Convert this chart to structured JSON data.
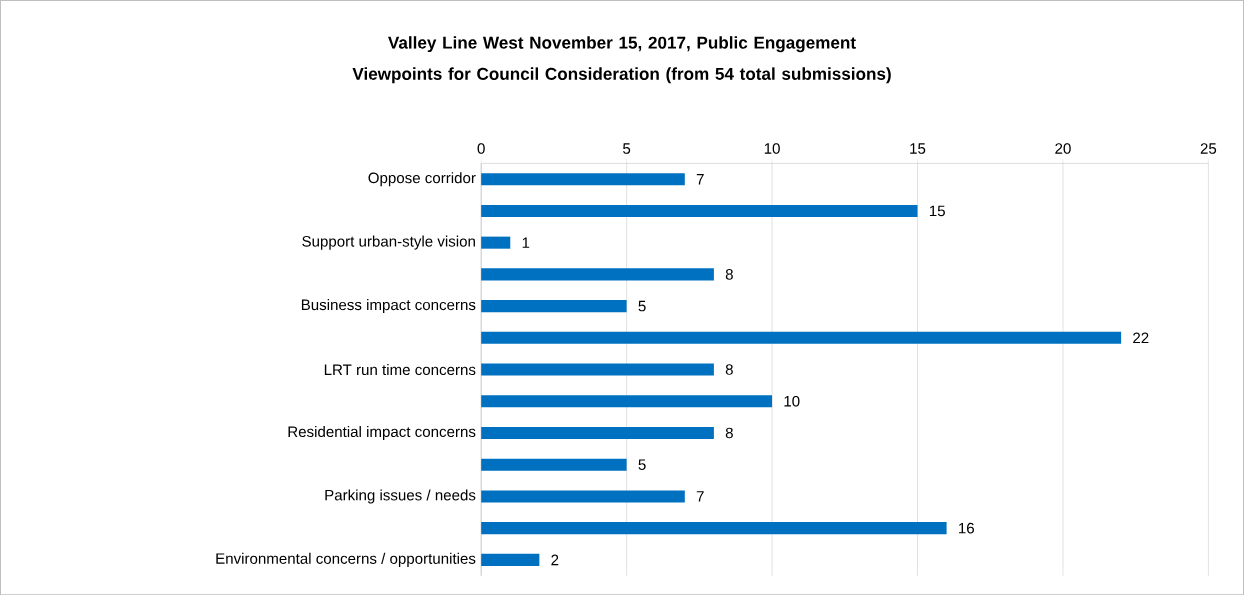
{
  "chart_data": {
    "type": "bar",
    "orientation": "horizontal",
    "title": "Valley Line West November 15, 2017, Public Engagement Viewpoints for Council Consideration (from  54 total submissions)",
    "categories": [
      "Oppose corridor",
      null,
      "Support urban-style vision",
      null,
      "Business impact concerns",
      null,
      "LRT run time concerns",
      null,
      "Residential impact concerns",
      null,
      "Parking issues / needs",
      null,
      "Environmental concerns / opportunities"
    ],
    "values": [
      7,
      15,
      1,
      8,
      5,
      22,
      8,
      10,
      8,
      5,
      7,
      16,
      2
    ],
    "color": "#0070c0",
    "xlim": [
      0,
      25
    ],
    "xticks": [
      0,
      5,
      10,
      15,
      20,
      25
    ],
    "grid": "x",
    "data_labels": true
  }
}
